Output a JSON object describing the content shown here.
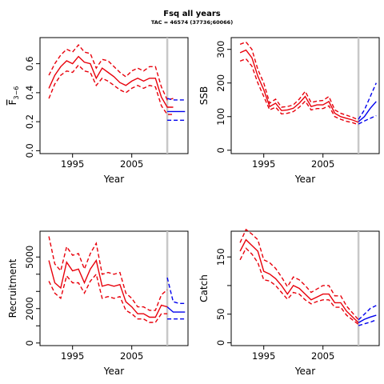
{
  "title": "Fsq all years",
  "subtitle": "TAC = 46574 (37736;60066)",
  "colors": {
    "historic": "#e8000b",
    "forecast": "#0000ee",
    "divider": "#c8c8c8",
    "axis": "#000000"
  },
  "chart_data": [
    {
      "type": "line",
      "ylabel": "F̅ 3−6",
      "ylabel_main": "F",
      "ylabel_sub": "3−6",
      "xlabel": "Year",
      "xticks": [
        1995,
        2005
      ],
      "yticks": [
        "0.0",
        "0.2",
        "0.4",
        "0.6"
      ],
      "ylim": [
        -0.02,
        0.78
      ],
      "xlim": [
        1989.5,
        2014.5
      ],
      "divider_year": 2011,
      "historic": {
        "years": [
          1991,
          1992,
          1993,
          1994,
          1995,
          1996,
          1997,
          1998,
          1999,
          2000,
          2001,
          2002,
          2003,
          2004,
          2005,
          2006,
          2007,
          2008,
          2009,
          2010,
          2011,
          2012
        ],
        "median": [
          0.43,
          0.52,
          0.58,
          0.62,
          0.6,
          0.65,
          0.61,
          0.6,
          0.5,
          0.57,
          0.54,
          0.51,
          0.47,
          0.45,
          0.48,
          0.5,
          0.48,
          0.5,
          0.5,
          0.37,
          0.3,
          0.3
        ],
        "lower": [
          0.36,
          0.46,
          0.52,
          0.55,
          0.54,
          0.59,
          0.55,
          0.54,
          0.45,
          0.5,
          0.48,
          0.45,
          0.42,
          0.4,
          0.43,
          0.45,
          0.43,
          0.45,
          0.44,
          0.31,
          0.25,
          0.25
        ],
        "upper": [
          0.52,
          0.6,
          0.66,
          0.7,
          0.68,
          0.73,
          0.68,
          0.67,
          0.57,
          0.63,
          0.62,
          0.58,
          0.54,
          0.51,
          0.55,
          0.57,
          0.55,
          0.58,
          0.58,
          0.44,
          0.35,
          0.36
        ]
      },
      "forecast": {
        "years": [
          2011,
          2012,
          2013,
          2014
        ],
        "median": [
          0.27,
          0.27,
          0.27,
          0.27
        ],
        "lower": [
          0.21,
          0.21,
          0.21,
          0.21
        ],
        "upper": [
          0.36,
          0.35,
          0.35,
          0.35
        ]
      }
    },
    {
      "type": "line",
      "ylabel": "SSB",
      "xlabel": "Year",
      "xticks": [
        1995,
        2005
      ],
      "yticks": [
        "0",
        "100",
        "200",
        "300"
      ],
      "ylim": [
        -10,
        335
      ],
      "xlim": [
        1989.5,
        2014.5
      ],
      "divider_year": 2011,
      "historic": {
        "years": [
          1991,
          1992,
          1993,
          1994,
          1995,
          1996,
          1997,
          1998,
          1999,
          2000,
          2001,
          2002,
          2003,
          2004,
          2005,
          2006,
          2007,
          2008,
          2009,
          2010,
          2011
        ],
        "median": [
          290,
          298,
          275,
          220,
          180,
          130,
          140,
          118,
          120,
          125,
          140,
          160,
          130,
          135,
          135,
          145,
          110,
          100,
          95,
          90,
          83
        ],
        "lower": [
          265,
          272,
          250,
          200,
          160,
          120,
          128,
          108,
          110,
          115,
          128,
          146,
          120,
          124,
          124,
          132,
          100,
          92,
          86,
          82,
          76
        ],
        "upper": [
          315,
          322,
          300,
          240,
          200,
          140,
          152,
          128,
          130,
          135,
          152,
          175,
          142,
          146,
          148,
          160,
          120,
          110,
          104,
          98,
          90
        ]
      },
      "forecast": {
        "years": [
          2011,
          2012,
          2013,
          2014
        ],
        "median": [
          85,
          100,
          125,
          145
        ],
        "lower": [
          78,
          87,
          95,
          103
        ],
        "upper": [
          92,
          120,
          160,
          200
        ]
      }
    },
    {
      "type": "line",
      "ylabel": "Recruitment",
      "xlabel": "Year",
      "xticks": [
        1995,
        2005
      ],
      "yticks": [
        "0",
        "2000",
        "5000"
      ],
      "yticks_minor": [
        1000,
        3000,
        4000
      ],
      "ylim": [
        -150,
        6500
      ],
      "xlim": [
        1989.5,
        2014.5
      ],
      "divider_year": 2011,
      "historic": {
        "years": [
          1991,
          1992,
          1993,
          1994,
          1995,
          1996,
          1997,
          1998,
          1999,
          2000,
          2001,
          2002,
          2003,
          2004,
          2005,
          2006,
          2007,
          2008,
          2009,
          2010,
          2011
        ],
        "median": [
          4800,
          3500,
          3200,
          4700,
          4200,
          4300,
          3500,
          4300,
          4800,
          3300,
          3400,
          3300,
          3400,
          2400,
          2100,
          1700,
          1700,
          1500,
          1500,
          2200,
          2100
        ],
        "lower": [
          3600,
          2900,
          2600,
          3900,
          3500,
          3500,
          2900,
          3600,
          4000,
          2600,
          2700,
          2600,
          2700,
          1900,
          1700,
          1400,
          1400,
          1200,
          1200,
          1700,
          1700
        ],
        "upper": [
          6200,
          4600,
          4200,
          5600,
          5100,
          5200,
          4300,
          5200,
          5800,
          4000,
          4100,
          4000,
          4100,
          2900,
          2600,
          2100,
          2100,
          1900,
          1900,
          2800,
          3100
        ]
      },
      "forecast": {
        "years": [
          2011,
          2012,
          2013,
          2014
        ],
        "median": [
          2100,
          1800,
          1800,
          1800
        ],
        "lower": [
          1400,
          1400,
          1400,
          1400
        ],
        "upper": [
          3800,
          2400,
          2300,
          2300
        ]
      }
    },
    {
      "type": "line",
      "ylabel": "Catch",
      "xlabel": "Year",
      "xticks": [
        1995,
        2005
      ],
      "yticks": [
        "0",
        "50",
        "150"
      ],
      "yticks_minor": [
        100
      ],
      "ylim": [
        -5,
        195
      ],
      "xlim": [
        1989.5,
        2014.5
      ],
      "divider_year": 2011,
      "historic": {
        "years": [
          1991,
          1992,
          1993,
          1994,
          1995,
          1996,
          1997,
          1998,
          1999,
          2000,
          2001,
          2002,
          2003,
          2004,
          2005,
          2006,
          2007,
          2008,
          2009,
          2010,
          2011
        ],
        "median": [
          160,
          180,
          170,
          160,
          125,
          120,
          112,
          100,
          85,
          100,
          95,
          85,
          75,
          80,
          85,
          85,
          70,
          70,
          55,
          45,
          35
        ],
        "lower": [
          145,
          165,
          155,
          140,
          110,
          108,
          100,
          88,
          76,
          88,
          85,
          75,
          68,
          72,
          75,
          75,
          62,
          62,
          48,
          40,
          32
        ],
        "upper": [
          175,
          198,
          190,
          180,
          145,
          140,
          130,
          115,
          98,
          115,
          110,
          100,
          88,
          94,
          100,
          100,
          82,
          82,
          64,
          52,
          40
        ]
      },
      "forecast": {
        "years": [
          2011,
          2012,
          2013,
          2014
        ],
        "median": [
          35,
          41,
          45,
          48
        ],
        "lower": [
          30,
          33,
          36,
          40
        ],
        "upper": [
          40,
          50,
          60,
          65
        ]
      }
    }
  ]
}
